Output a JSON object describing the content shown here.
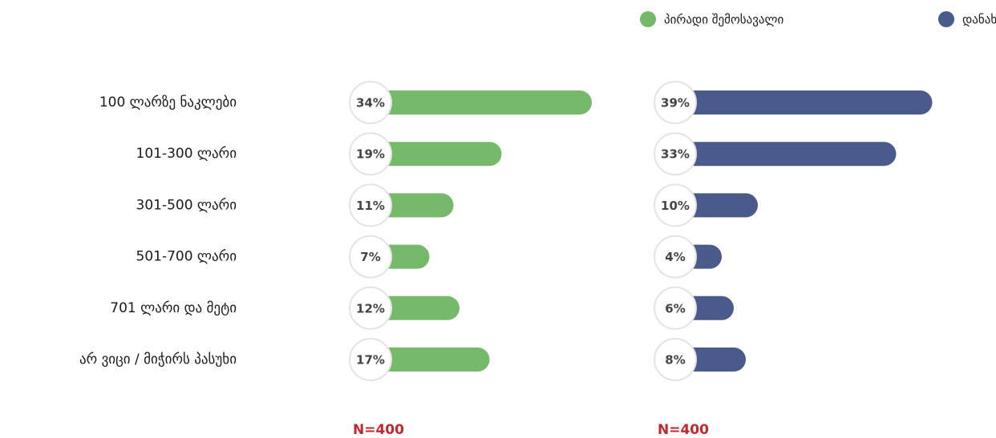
{
  "chart_data": {
    "type": "bar",
    "categories": [
      "100 ლარზე ნაკლები",
      "101-300 ლარი",
      "301-500 ლარი",
      "501-700 ლარი",
      "701 ლარი და მეტი",
      "არ ვიცი / მიჭირს  პასუხი"
    ],
    "series": [
      {
        "name": "პირადი შემოსავალი",
        "color": "#76b96a",
        "values": [
          34,
          19,
          11,
          7,
          12,
          17
        ],
        "value_labels": [
          "34%",
          "19%",
          "11%",
          "7%",
          "12%",
          "17%"
        ]
      },
      {
        "name": "დანახარჯი",
        "color": "#4a5a8a",
        "values": [
          39,
          33,
          10,
          4,
          6,
          8
        ],
        "value_labels": [
          "39%",
          "33%",
          "10%",
          "4%",
          "6%",
          "8%"
        ]
      }
    ],
    "annotations": [
      "N=400",
      "N=400"
    ],
    "legend": "top-right"
  }
}
